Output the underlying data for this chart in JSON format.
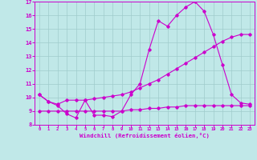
{
  "xlabel": "Windchill (Refroidissement éolien,°C)",
  "xlim": [
    -0.5,
    23.5
  ],
  "ylim": [
    8,
    17
  ],
  "yticks": [
    8,
    9,
    10,
    11,
    12,
    13,
    14,
    15,
    16,
    17
  ],
  "xticks": [
    0,
    1,
    2,
    3,
    4,
    5,
    6,
    7,
    8,
    9,
    10,
    11,
    12,
    13,
    14,
    15,
    16,
    17,
    18,
    19,
    20,
    21,
    22,
    23
  ],
  "bg_color": "#c0e8e8",
  "grid_color": "#a0cccc",
  "line_color": "#cc00cc",
  "line1_x": [
    0,
    1,
    2,
    3,
    4,
    5,
    6,
    7,
    8,
    9,
    10,
    11,
    12,
    13,
    14,
    15,
    16,
    17,
    18,
    19,
    20,
    21,
    22,
    23
  ],
  "line1_y": [
    10.2,
    9.7,
    9.4,
    8.8,
    8.5,
    9.8,
    8.7,
    8.7,
    8.6,
    9.0,
    10.2,
    11.0,
    13.5,
    15.6,
    15.2,
    16.0,
    16.6,
    17.0,
    16.3,
    14.6,
    12.4,
    10.2,
    9.6,
    9.5
  ],
  "line2_x": [
    0,
    1,
    2,
    3,
    4,
    5,
    6,
    7,
    8,
    9,
    10,
    11,
    12,
    13,
    14,
    15,
    16,
    17,
    18,
    19,
    20,
    21,
    22,
    23
  ],
  "line2_y": [
    10.2,
    9.7,
    9.5,
    9.8,
    9.8,
    9.8,
    9.9,
    10.0,
    10.1,
    10.2,
    10.4,
    10.7,
    11.0,
    11.3,
    11.7,
    12.1,
    12.5,
    12.9,
    13.3,
    13.7,
    14.1,
    14.4,
    14.6,
    14.6
  ],
  "line3_x": [
    0,
    1,
    2,
    3,
    4,
    5,
    6,
    7,
    8,
    9,
    10,
    11,
    12,
    13,
    14,
    15,
    16,
    17,
    18,
    19,
    20,
    21,
    22,
    23
  ],
  "line3_y": [
    9.0,
    9.0,
    9.0,
    9.0,
    9.0,
    9.0,
    9.0,
    9.0,
    9.0,
    9.0,
    9.1,
    9.1,
    9.2,
    9.2,
    9.3,
    9.3,
    9.4,
    9.4,
    9.4,
    9.4,
    9.4,
    9.4,
    9.4,
    9.4
  ]
}
